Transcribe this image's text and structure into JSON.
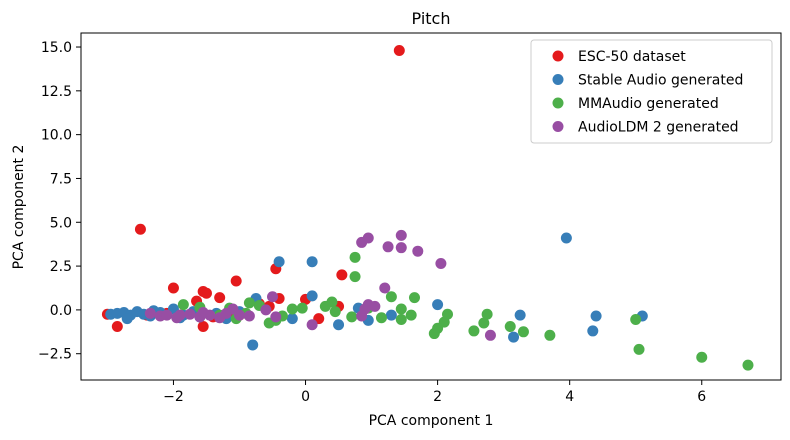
{
  "chart_data": {
    "type": "scatter",
    "title": "Pitch",
    "xlabel": "PCA component 1",
    "ylabel": "PCA component 2",
    "xlim": [
      -3.4,
      7.2
    ],
    "ylim": [
      -4.0,
      15.8
    ],
    "xticks": [
      -2,
      0,
      2,
      4,
      6
    ],
    "xtick_labels": [
      "−2",
      "0",
      "2",
      "4",
      "6"
    ],
    "yticks": [
      -2.5,
      0.0,
      2.5,
      5.0,
      7.5,
      10.0,
      12.5,
      15.0
    ],
    "ytick_labels": [
      "−2.5",
      "0.0",
      "2.5",
      "5.0",
      "7.5",
      "10.0",
      "12.5",
      "15.0"
    ],
    "grid": false,
    "legend_position": "top-right",
    "series": [
      {
        "name": "ESC-50 dataset",
        "color": "#e41a1c",
        "points": [
          [
            1.42,
            14.8
          ],
          [
            -2.5,
            4.6
          ],
          [
            0.55,
            2.0
          ],
          [
            -0.45,
            2.35
          ],
          [
            -1.05,
            1.65
          ],
          [
            -2.0,
            1.25
          ],
          [
            -1.55,
            1.05
          ],
          [
            -1.5,
            0.95
          ],
          [
            -1.3,
            0.7
          ],
          [
            -1.65,
            0.5
          ],
          [
            -0.4,
            0.65
          ],
          [
            -0.7,
            0.35
          ],
          [
            0.0,
            0.6
          ],
          [
            -0.55,
            0.2
          ],
          [
            0.5,
            0.2
          ],
          [
            -2.85,
            -0.95
          ],
          [
            -1.55,
            -0.95
          ],
          [
            -1.9,
            -0.3
          ],
          [
            -2.1,
            -0.2
          ],
          [
            -3.0,
            -0.25
          ],
          [
            0.2,
            -0.5
          ],
          [
            -1.0,
            -0.3
          ],
          [
            -1.4,
            -0.4
          ],
          [
            -2.4,
            -0.3
          ],
          [
            -1.1,
            -0.2
          ]
        ]
      },
      {
        "name": "Stable Audio generated",
        "color": "#377eb8",
        "points": [
          [
            3.95,
            4.1
          ],
          [
            -0.4,
            2.75
          ],
          [
            0.1,
            2.75
          ],
          [
            0.1,
            0.8
          ],
          [
            -0.75,
            0.65
          ],
          [
            -0.8,
            -2.0
          ],
          [
            0.5,
            -0.85
          ],
          [
            0.95,
            -0.6
          ],
          [
            1.3,
            -0.3
          ],
          [
            2.0,
            0.3
          ],
          [
            3.15,
            -1.55
          ],
          [
            3.25,
            -0.3
          ],
          [
            4.35,
            -1.2
          ],
          [
            4.4,
            -0.35
          ],
          [
            5.1,
            -0.35
          ],
          [
            -2.95,
            -0.25
          ],
          [
            -2.85,
            -0.2
          ],
          [
            -2.75,
            -0.15
          ],
          [
            -2.65,
            -0.3
          ],
          [
            -2.55,
            -0.1
          ],
          [
            -2.45,
            -0.25
          ],
          [
            -2.35,
            -0.35
          ],
          [
            -2.2,
            -0.15
          ],
          [
            -2.0,
            0.05
          ],
          [
            -1.85,
            -0.3
          ],
          [
            -1.7,
            -0.1
          ],
          [
            -1.6,
            -0.4
          ],
          [
            -1.35,
            -0.2
          ],
          [
            -1.2,
            -0.5
          ],
          [
            -1.0,
            -0.1
          ],
          [
            -0.2,
            -0.5
          ],
          [
            0.8,
            0.1
          ],
          [
            -2.7,
            -0.5
          ],
          [
            -2.3,
            -0.05
          ],
          [
            -1.9,
            -0.45
          ]
        ]
      },
      {
        "name": "MMAudio generated",
        "color": "#4daf4a",
        "points": [
          [
            6.7,
            -3.15
          ],
          [
            6.0,
            -2.7
          ],
          [
            5.05,
            -2.25
          ],
          [
            5.0,
            -0.55
          ],
          [
            3.7,
            -1.45
          ],
          [
            3.3,
            -1.25
          ],
          [
            3.1,
            -0.95
          ],
          [
            2.55,
            -1.2
          ],
          [
            2.75,
            -0.25
          ],
          [
            2.7,
            -0.75
          ],
          [
            2.1,
            -0.7
          ],
          [
            2.0,
            -1.05
          ],
          [
            1.95,
            -1.35
          ],
          [
            2.15,
            -0.25
          ],
          [
            1.6,
            -0.3
          ],
          [
            1.45,
            -0.55
          ],
          [
            1.45,
            0.05
          ],
          [
            1.65,
            0.7
          ],
          [
            1.3,
            0.75
          ],
          [
            0.75,
            3.0
          ],
          [
            0.75,
            1.9
          ],
          [
            0.95,
            0.1
          ],
          [
            0.7,
            -0.4
          ],
          [
            0.4,
            0.45
          ],
          [
            0.3,
            0.2
          ],
          [
            -0.05,
            0.1
          ],
          [
            -0.45,
            -0.6
          ],
          [
            -0.35,
            -0.35
          ],
          [
            -0.55,
            -0.75
          ],
          [
            -0.7,
            0.25
          ],
          [
            -0.85,
            0.4
          ],
          [
            -1.05,
            -0.5
          ],
          [
            -1.3,
            -0.3
          ],
          [
            -1.6,
            0.15
          ],
          [
            -1.85,
            0.3
          ],
          [
            -0.2,
            0.05
          ],
          [
            0.45,
            -0.1
          ],
          [
            -0.9,
            -0.2
          ],
          [
            -1.15,
            0.1
          ],
          [
            1.15,
            -0.45
          ]
        ]
      },
      {
        "name": "AudioLDM 2 generated",
        "color": "#984ea3",
        "points": [
          [
            1.45,
            4.25
          ],
          [
            0.95,
            4.1
          ],
          [
            0.85,
            3.85
          ],
          [
            1.25,
            3.6
          ],
          [
            1.45,
            3.55
          ],
          [
            1.7,
            3.35
          ],
          [
            2.05,
            2.65
          ],
          [
            1.2,
            1.25
          ],
          [
            0.95,
            0.3
          ],
          [
            1.05,
            0.2
          ],
          [
            0.85,
            -0.35
          ],
          [
            0.9,
            0.05
          ],
          [
            2.8,
            -1.45
          ],
          [
            0.1,
            -0.85
          ],
          [
            -0.5,
            0.75
          ],
          [
            -1.1,
            0.05
          ],
          [
            -1.9,
            -0.3
          ],
          [
            -2.2,
            -0.35
          ],
          [
            -2.35,
            -0.2
          ],
          [
            -2.1,
            -0.3
          ],
          [
            -1.75,
            -0.25
          ],
          [
            -1.6,
            -0.4
          ],
          [
            -1.45,
            -0.3
          ],
          [
            -1.3,
            -0.45
          ],
          [
            -1.2,
            -0.2
          ],
          [
            -1.0,
            -0.3
          ],
          [
            -0.85,
            -0.35
          ],
          [
            -0.6,
            0.0
          ],
          [
            -1.55,
            -0.15
          ],
          [
            -1.95,
            -0.45
          ],
          [
            -0.45,
            -0.4
          ]
        ]
      }
    ]
  }
}
